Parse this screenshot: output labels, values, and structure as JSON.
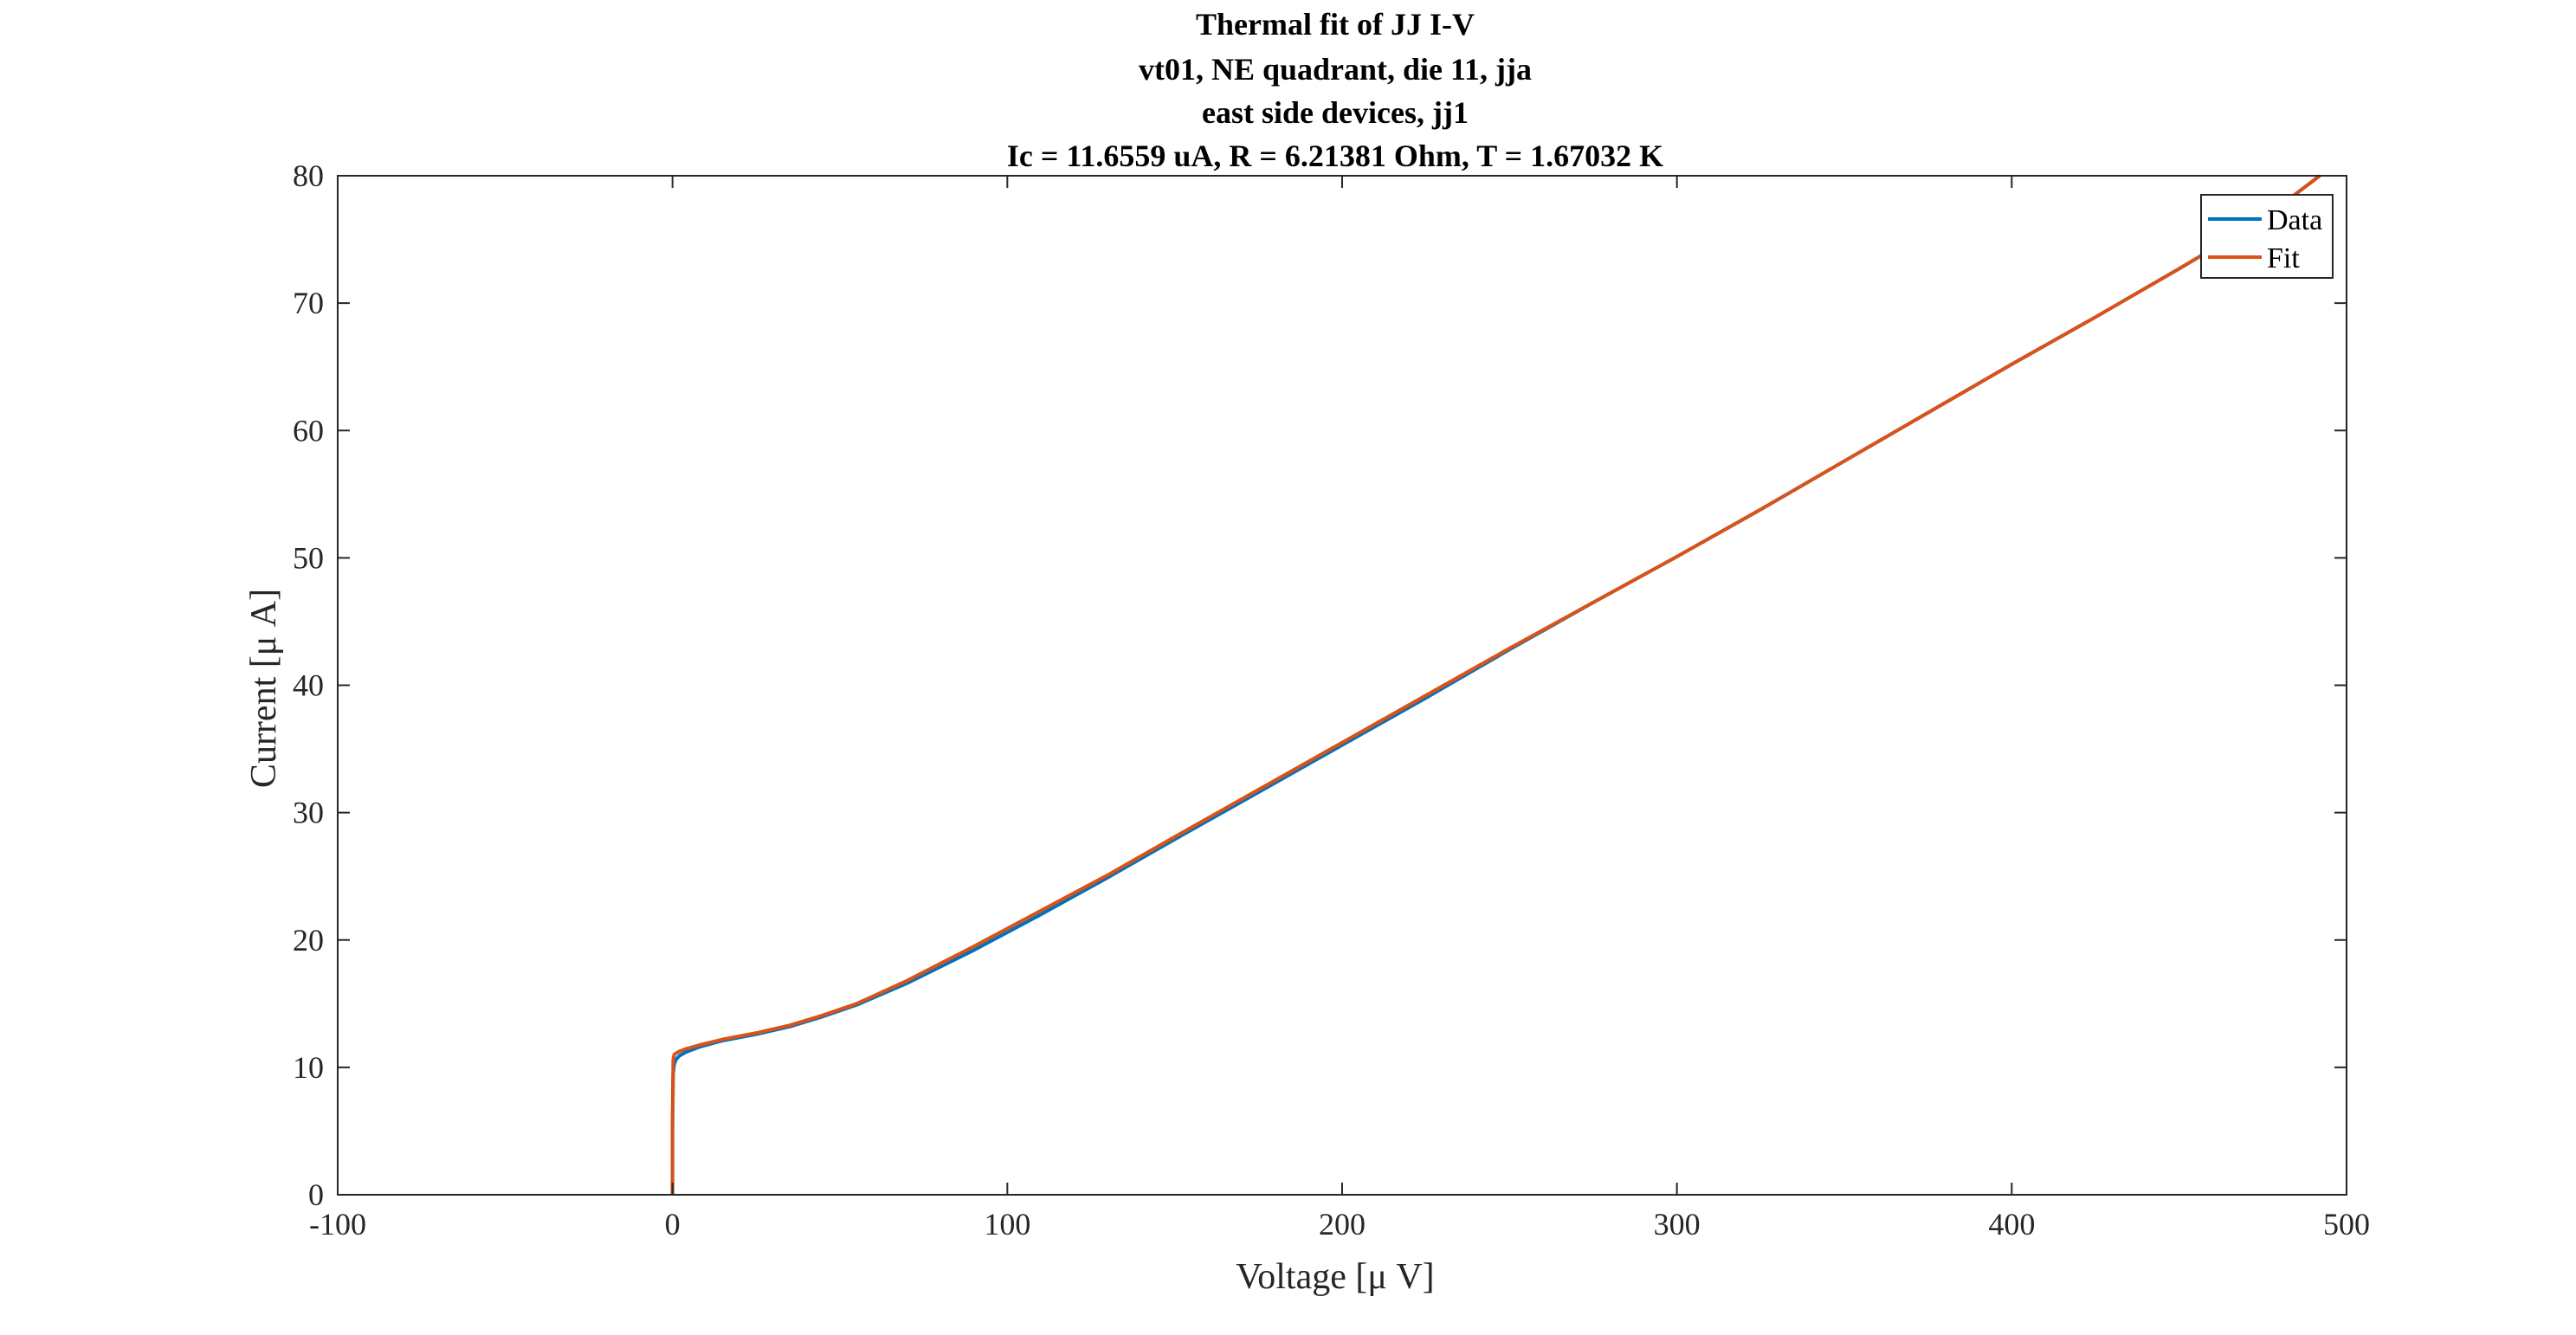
{
  "chart_data": {
    "type": "line",
    "title": [
      "Thermal fit of JJ I-V",
      "vt01, NE quadrant, die 11, jja",
      "east side devices, jj1",
      "Ic = 11.6559 uA, R = 6.21381 Ohm, T = 1.67032 K"
    ],
    "xlabel": "Voltage [μ V]",
    "ylabel": "Current [μ A]",
    "xlim": [
      -100,
      500
    ],
    "ylim": [
      0,
      80
    ],
    "xticks": [
      -100,
      0,
      100,
      200,
      300,
      400,
      500
    ],
    "yticks": [
      0,
      10,
      20,
      30,
      40,
      50,
      60,
      70,
      80
    ],
    "grid": false,
    "legend_position": "top-right",
    "series": [
      {
        "name": "Data",
        "color": "#0072BD",
        "x": [
          0,
          0,
          0.2,
          0.5,
          1,
          2,
          4,
          8,
          15,
          25,
          35,
          45,
          55,
          70,
          90,
          110,
          130,
          150,
          175,
          200,
          225,
          250,
          275,
          300,
          325,
          350,
          375,
          400,
          425,
          450,
          475,
          492
        ],
        "y": [
          0,
          5,
          9.5,
          10.2,
          10.6,
          10.9,
          11.2,
          11.6,
          12.1,
          12.6,
          13.2,
          14.0,
          14.9,
          16.6,
          19.2,
          22.0,
          24.9,
          27.9,
          31.6,
          35.3,
          39.0,
          42.8,
          46.5,
          50.1,
          53.8,
          57.6,
          61.4,
          65.2,
          68.9,
          72.7,
          76.6,
          80
        ]
      },
      {
        "name": "Fit",
        "color": "#D95319",
        "x": [
          0,
          0,
          0.2,
          0.5,
          1,
          2,
          4,
          8,
          15,
          25,
          35,
          45,
          55,
          70,
          90,
          110,
          130,
          150,
          175,
          200,
          225,
          250,
          275,
          300,
          325,
          350,
          375,
          400,
          425,
          450,
          475,
          492
        ],
        "y": [
          0,
          6,
          10.6,
          11.0,
          11.1,
          11.25,
          11.45,
          11.75,
          12.2,
          12.7,
          13.3,
          14.1,
          15.0,
          16.8,
          19.5,
          22.3,
          25.1,
          28.1,
          31.8,
          35.5,
          39.2,
          42.9,
          46.5,
          50.1,
          53.8,
          57.6,
          61.4,
          65.2,
          68.9,
          72.7,
          76.6,
          80
        ]
      }
    ]
  }
}
